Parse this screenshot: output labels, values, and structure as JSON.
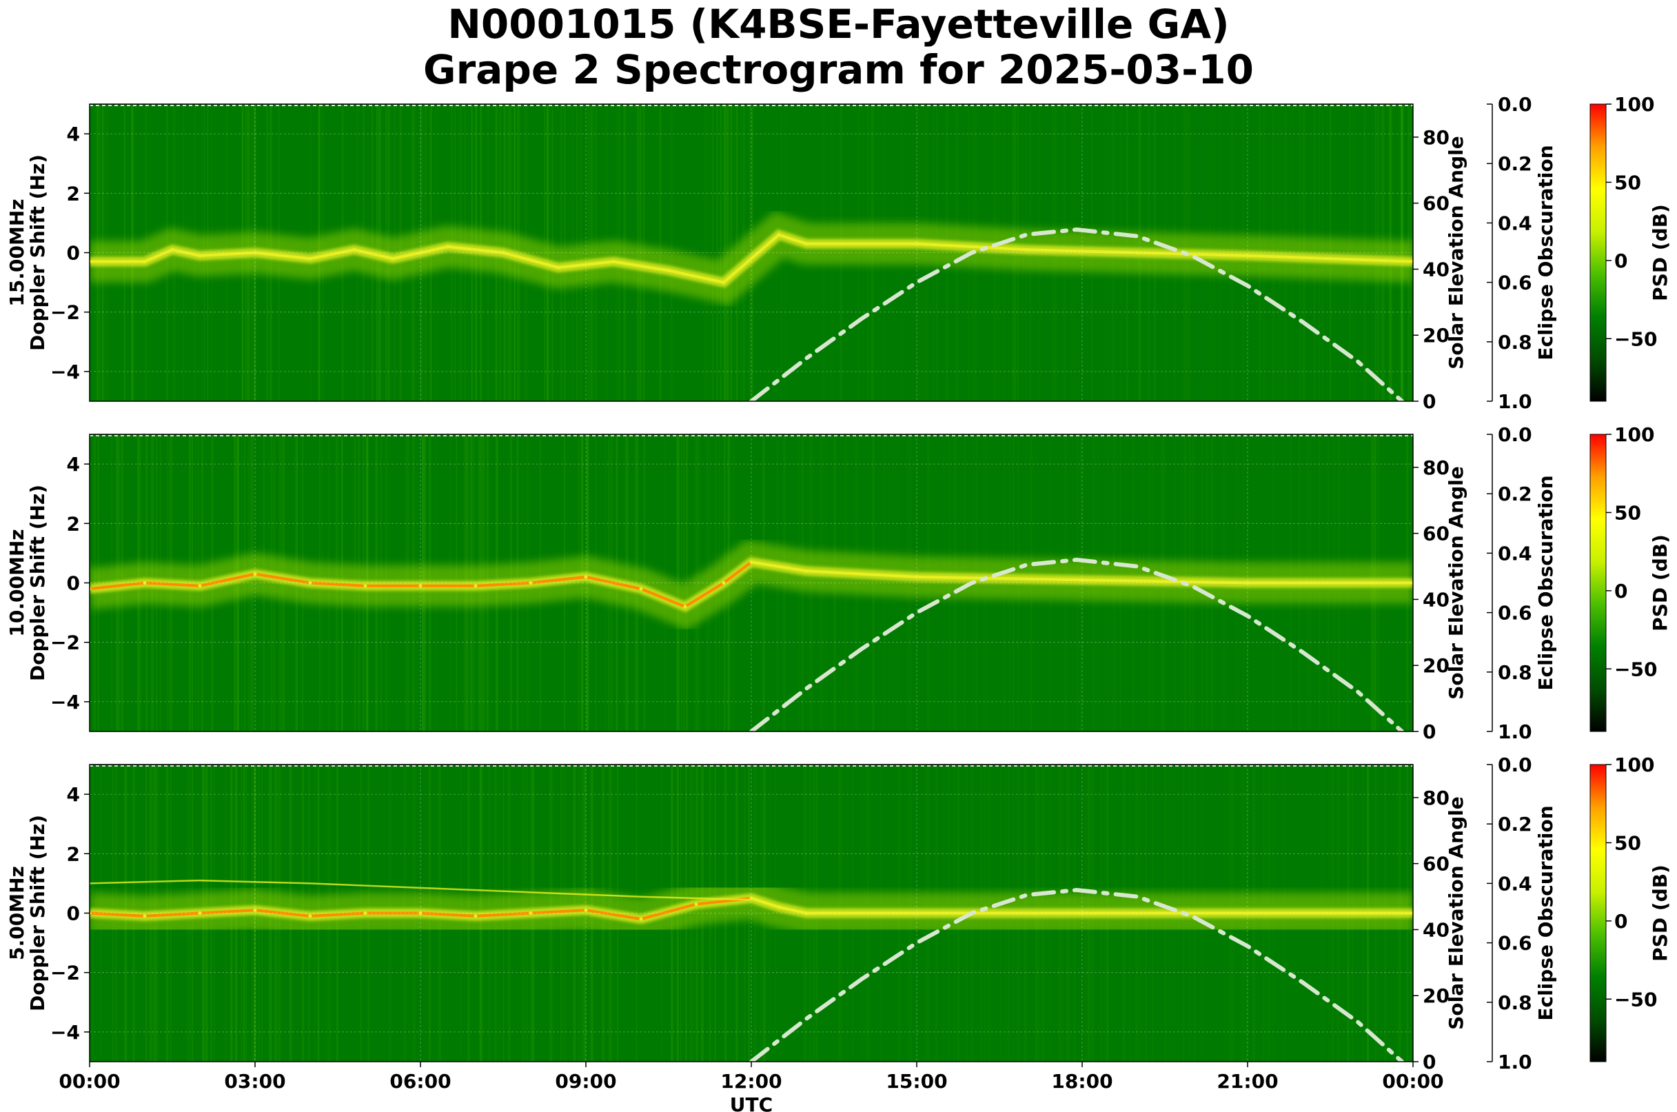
{
  "header": {
    "title_line1": "N0001015 (K4BSE-Fayetteville GA)",
    "title_line2": "Grape 2 Spectrogram for 2025-03-10"
  },
  "colors": {
    "background_green": "#007a00",
    "trace_yellow": "#e8f020",
    "trace_orange": "#ff8c00",
    "solar_curve": "#d8e8d0",
    "colormap": [
      "#000000",
      "#004d00",
      "#008000",
      "#4cc000",
      "#c8f000",
      "#ffff00",
      "#ffa000",
      "#ff0000"
    ]
  },
  "chart_data": [
    {
      "type": "heatmap",
      "panel_label": "15.00MHz",
      "ylabel_line1": "15.00MHz",
      "ylabel_line2": "Doppler Shift (Hz)",
      "xlabel": "",
      "ylim": [
        -5,
        5
      ],
      "yticks": [
        "4",
        "2",
        "0",
        "−2",
        "−4"
      ],
      "ytick_values": [
        4,
        2,
        0,
        -2,
        -4
      ],
      "right_ylabel": "Solar Elevation Angle",
      "right_ylim": [
        0,
        90
      ],
      "right_yticks": [
        "80",
        "60",
        "40",
        "20",
        "0"
      ],
      "right_ytick_values": [
        80,
        60,
        40,
        20,
        0
      ],
      "eclipse_label": "Eclipse Obscuration",
      "eclipse_ticks": [
        "0.0",
        "0.2",
        "0.4",
        "0.6",
        "0.8",
        "1.0"
      ],
      "eclipse_tick_values": [
        0.0,
        0.2,
        0.4,
        0.6,
        0.8,
        1.0
      ],
      "colorbar_label": "PSD (dB)",
      "colorbar_range": [
        -90,
        100
      ],
      "colorbar_ticks": [
        "100",
        "50",
        "0",
        "−50"
      ],
      "colorbar_tick_values": [
        100,
        50,
        0,
        -50
      ],
      "doppler_trace": [
        {
          "t": 0.0,
          "f": -0.3
        },
        {
          "t": 1.0,
          "f": -0.3
        },
        {
          "t": 1.5,
          "f": 0.1
        },
        {
          "t": 2.0,
          "f": -0.1
        },
        {
          "t": 3.0,
          "f": 0.0
        },
        {
          "t": 4.0,
          "f": -0.2
        },
        {
          "t": 4.8,
          "f": 0.1
        },
        {
          "t": 5.5,
          "f": -0.2
        },
        {
          "t": 6.5,
          "f": 0.2
        },
        {
          "t": 7.5,
          "f": 0.0
        },
        {
          "t": 8.5,
          "f": -0.5
        },
        {
          "t": 9.5,
          "f": -0.3
        },
        {
          "t": 10.5,
          "f": -0.6
        },
        {
          "t": 11.5,
          "f": -1.0
        },
        {
          "t": 12.5,
          "f": 0.6
        },
        {
          "t": 13.0,
          "f": 0.3
        },
        {
          "t": 15.0,
          "f": 0.3
        },
        {
          "t": 17.0,
          "f": 0.1
        },
        {
          "t": 19.0,
          "f": 0.0
        },
        {
          "t": 21.0,
          "f": -0.1
        },
        {
          "t": 22.5,
          "f": -0.2
        },
        {
          "t": 24.0,
          "f": -0.3
        }
      ],
      "solar_elevation": [
        {
          "t": 12.0,
          "elev": 0
        },
        {
          "t": 13.0,
          "elev": 13
        },
        {
          "t": 14.0,
          "elev": 25
        },
        {
          "t": 15.0,
          "elev": 36
        },
        {
          "t": 16.0,
          "elev": 45
        },
        {
          "t": 17.0,
          "elev": 50.5
        },
        {
          "t": 17.9,
          "elev": 52
        },
        {
          "t": 19.0,
          "elev": 50
        },
        {
          "t": 20.0,
          "elev": 44
        },
        {
          "t": 21.0,
          "elev": 35
        },
        {
          "t": 22.0,
          "elev": 24
        },
        {
          "t": 23.0,
          "elev": 12
        },
        {
          "t": 23.8,
          "elev": 0
        }
      ]
    },
    {
      "type": "heatmap",
      "panel_label": "10.00MHz",
      "ylabel_line1": "10.00MHz",
      "ylabel_line2": "Doppler Shift (Hz)",
      "xlabel": "",
      "ylim": [
        -5,
        5
      ],
      "yticks": [
        "4",
        "2",
        "0",
        "−2",
        "−4"
      ],
      "ytick_values": [
        4,
        2,
        0,
        -2,
        -4
      ],
      "right_ylabel": "Solar Elevation Angle",
      "right_ylim": [
        0,
        90
      ],
      "right_yticks": [
        "80",
        "60",
        "40",
        "20",
        "0"
      ],
      "right_ytick_values": [
        80,
        60,
        40,
        20,
        0
      ],
      "eclipse_label": "Eclipse Obscuration",
      "eclipse_ticks": [
        "0.0",
        "0.2",
        "0.4",
        "0.6",
        "0.8",
        "1.0"
      ],
      "eclipse_tick_values": [
        0.0,
        0.2,
        0.4,
        0.6,
        0.8,
        1.0
      ],
      "colorbar_label": "PSD (dB)",
      "colorbar_range": [
        -90,
        100
      ],
      "colorbar_ticks": [
        "100",
        "50",
        "0",
        "−50"
      ],
      "colorbar_tick_values": [
        100,
        50,
        0,
        -50
      ],
      "doppler_trace": [
        {
          "t": 0.0,
          "f": -0.2
        },
        {
          "t": 1.0,
          "f": 0.0
        },
        {
          "t": 2.0,
          "f": -0.1
        },
        {
          "t": 3.0,
          "f": 0.3
        },
        {
          "t": 4.0,
          "f": 0.0
        },
        {
          "t": 5.0,
          "f": -0.1
        },
        {
          "t": 6.0,
          "f": -0.1
        },
        {
          "t": 7.0,
          "f": -0.1
        },
        {
          "t": 8.0,
          "f": 0.0
        },
        {
          "t": 9.0,
          "f": 0.2
        },
        {
          "t": 10.0,
          "f": -0.2
        },
        {
          "t": 10.8,
          "f": -0.8
        },
        {
          "t": 11.5,
          "f": 0.0
        },
        {
          "t": 12.0,
          "f": 0.7
        },
        {
          "t": 13.0,
          "f": 0.4
        },
        {
          "t": 15.0,
          "f": 0.2
        },
        {
          "t": 18.0,
          "f": 0.1
        },
        {
          "t": 21.0,
          "f": 0.0
        },
        {
          "t": 24.0,
          "f": 0.0
        }
      ],
      "solar_elevation": [
        {
          "t": 12.0,
          "elev": 0
        },
        {
          "t": 13.0,
          "elev": 13
        },
        {
          "t": 14.0,
          "elev": 25
        },
        {
          "t": 15.0,
          "elev": 36
        },
        {
          "t": 16.0,
          "elev": 45
        },
        {
          "t": 17.0,
          "elev": 50.5
        },
        {
          "t": 17.9,
          "elev": 52
        },
        {
          "t": 19.0,
          "elev": 50
        },
        {
          "t": 20.0,
          "elev": 44
        },
        {
          "t": 21.0,
          "elev": 35
        },
        {
          "t": 22.0,
          "elev": 24
        },
        {
          "t": 23.0,
          "elev": 12
        },
        {
          "t": 23.8,
          "elev": 0
        }
      ]
    },
    {
      "type": "heatmap",
      "panel_label": "5.00MHz",
      "ylabel_line1": "5.00MHz",
      "ylabel_line2": "Doppler Shift (Hz)",
      "xlabel": "UTC",
      "xticks": [
        "00:00",
        "03:00",
        "06:00",
        "09:00",
        "12:00",
        "15:00",
        "18:00",
        "21:00",
        "00:00"
      ],
      "xtick_hours": [
        0,
        3,
        6,
        9,
        12,
        15,
        18,
        21,
        24
      ],
      "xlim_hours": [
        0,
        24
      ],
      "ylim": [
        -5,
        5
      ],
      "yticks": [
        "4",
        "2",
        "0",
        "−2",
        "−4"
      ],
      "ytick_values": [
        4,
        2,
        0,
        -2,
        -4
      ],
      "right_ylabel": "Solar Elevation Angle",
      "right_ylim": [
        0,
        90
      ],
      "right_yticks": [
        "80",
        "60",
        "40",
        "20",
        "0"
      ],
      "right_ytick_values": [
        80,
        60,
        40,
        20,
        0
      ],
      "eclipse_label": "Eclipse Obscuration",
      "eclipse_ticks": [
        "0.0",
        "0.2",
        "0.4",
        "0.6",
        "0.8",
        "1.0"
      ],
      "eclipse_tick_values": [
        0.0,
        0.2,
        0.4,
        0.6,
        0.8,
        1.0
      ],
      "colorbar_label": "PSD (dB)",
      "colorbar_range": [
        -90,
        100
      ],
      "colorbar_ticks": [
        "100",
        "50",
        "0",
        "−50"
      ],
      "colorbar_tick_values": [
        100,
        50,
        0,
        -50
      ],
      "doppler_trace": [
        {
          "t": 0.0,
          "f": 0.0
        },
        {
          "t": 1.0,
          "f": -0.1
        },
        {
          "t": 2.0,
          "f": 0.0
        },
        {
          "t": 3.0,
          "f": 0.1
        },
        {
          "t": 4.0,
          "f": -0.1
        },
        {
          "t": 5.0,
          "f": 0.0
        },
        {
          "t": 6.0,
          "f": 0.0
        },
        {
          "t": 7.0,
          "f": -0.1
        },
        {
          "t": 8.0,
          "f": 0.0
        },
        {
          "t": 9.0,
          "f": 0.1
        },
        {
          "t": 10.0,
          "f": -0.2
        },
        {
          "t": 11.0,
          "f": 0.3
        },
        {
          "t": 12.0,
          "f": 0.5
        },
        {
          "t": 12.5,
          "f": 0.2
        },
        {
          "t": 13.0,
          "f": 0.0
        },
        {
          "t": 18.0,
          "f": 0.0
        },
        {
          "t": 24.0,
          "f": 0.0
        }
      ],
      "secondary_trace": [
        {
          "t": 0.0,
          "f": 1.0
        },
        {
          "t": 2.0,
          "f": 1.1
        },
        {
          "t": 4.0,
          "f": 1.0
        },
        {
          "t": 6.0,
          "f": 0.85
        },
        {
          "t": 8.0,
          "f": 0.7
        },
        {
          "t": 10.0,
          "f": 0.55
        },
        {
          "t": 12.0,
          "f": 0.45
        }
      ],
      "solar_elevation": [
        {
          "t": 12.0,
          "elev": 0
        },
        {
          "t": 13.0,
          "elev": 13
        },
        {
          "t": 14.0,
          "elev": 25
        },
        {
          "t": 15.0,
          "elev": 36
        },
        {
          "t": 16.0,
          "elev": 45
        },
        {
          "t": 17.0,
          "elev": 50.5
        },
        {
          "t": 17.9,
          "elev": 52
        },
        {
          "t": 19.0,
          "elev": 50
        },
        {
          "t": 20.0,
          "elev": 44
        },
        {
          "t": 21.0,
          "elev": 35
        },
        {
          "t": 22.0,
          "elev": 24
        },
        {
          "t": 23.0,
          "elev": 12
        },
        {
          "t": 23.8,
          "elev": 0
        }
      ]
    }
  ]
}
